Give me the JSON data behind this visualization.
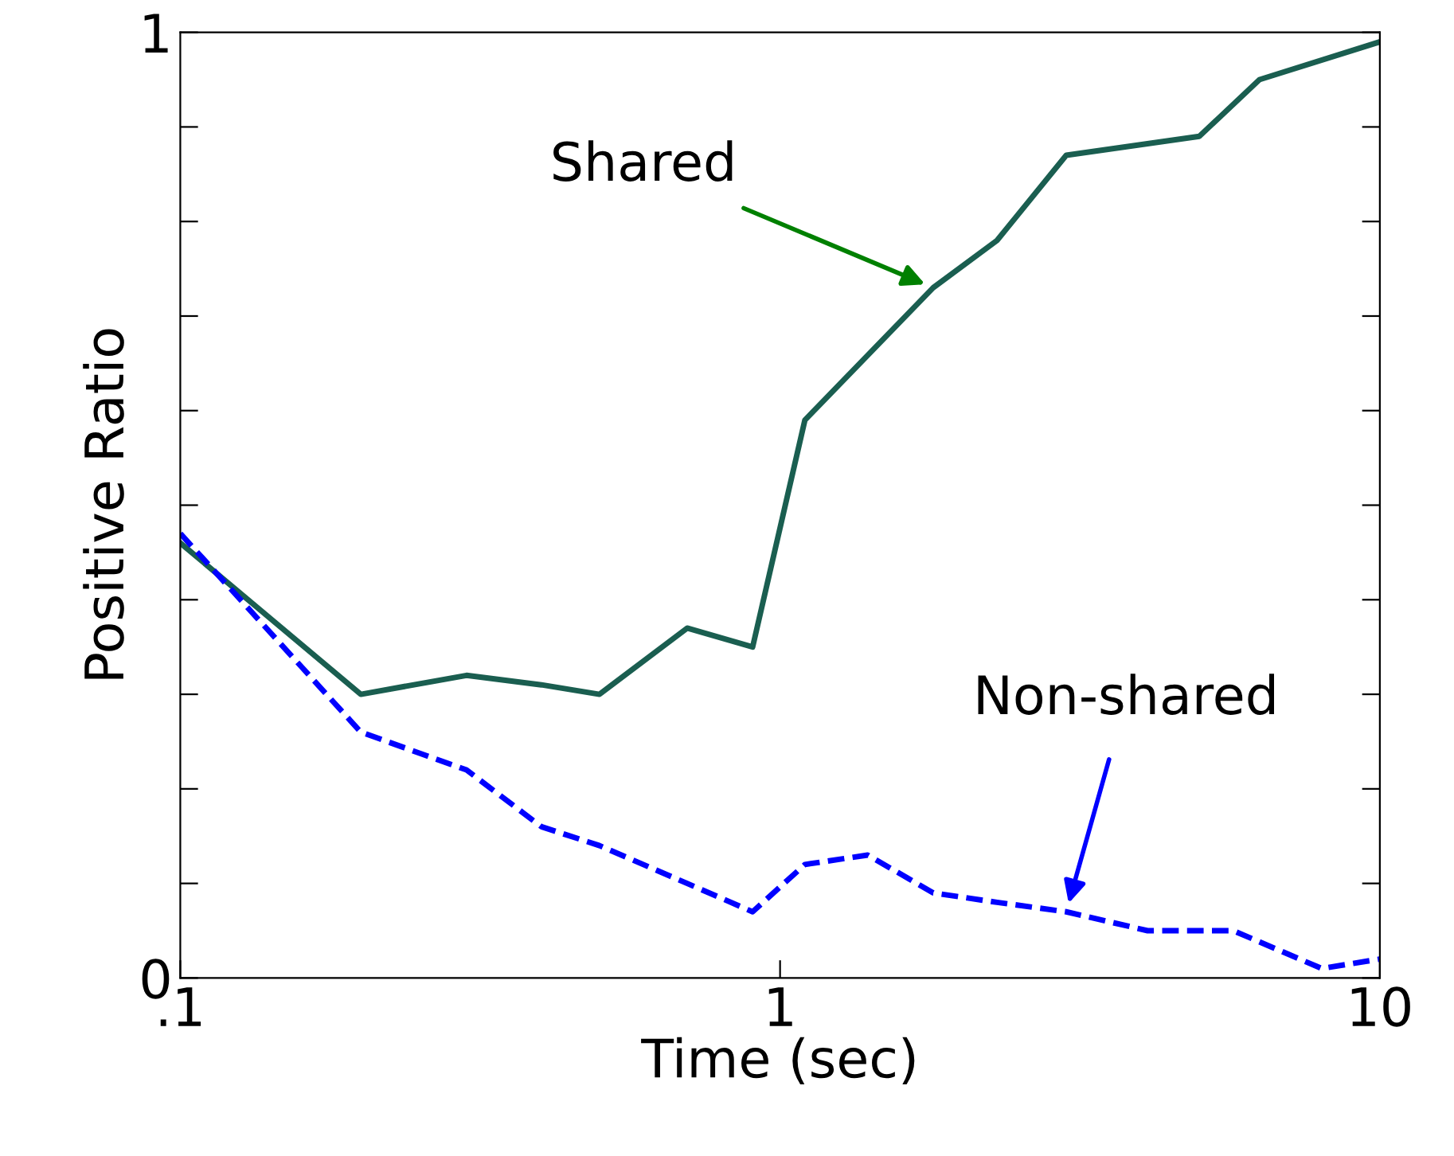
{
  "chart_data": {
    "type": "line",
    "xlabel": "Time (sec)",
    "ylabel": "Positive Ratio",
    "log": "x",
    "xlim": [
      0.1,
      10
    ],
    "xticks": [
      {
        "value": 0.1,
        "label": ".1"
      },
      1,
      10
    ],
    "ylim": [
      0,
      1
    ],
    "yticks": [
      0,
      {
        "value": 0.1,
        "label": null
      },
      {
        "value": 0.2,
        "label": null
      },
      {
        "value": 0.3,
        "label": null
      },
      {
        "value": 0.4,
        "label": null
      },
      {
        "value": 0.5,
        "label": null
      },
      {
        "value": 0.6,
        "label": null
      },
      {
        "value": 0.7,
        "label": null
      },
      {
        "value": 0.8,
        "label": null
      },
      {
        "value": 0.9,
        "label": null
      },
      1
    ],
    "grid": false,
    "legend": false,
    "marker": "none",
    "series": [
      {
        "color": "#1a5e50",
        "line_style": "solid",
        "x": [
          0.1,
          0.2,
          0.3,
          0.4,
          0.5,
          0.7,
          0.9,
          1.1,
          1.8,
          2.3,
          3.0,
          5.0,
          6.3,
          10
        ],
        "values": [
          0.46,
          0.3,
          0.32,
          0.31,
          0.3,
          0.37,
          0.35,
          0.59,
          0.73,
          0.78,
          0.87,
          0.89,
          0.95,
          0.99
        ]
      },
      {
        "color": "#0000ff",
        "line_style": "dashed",
        "x": [
          0.1,
          0.2,
          0.3,
          0.4,
          0.5,
          0.7,
          0.9,
          1.1,
          1.4,
          1.8,
          2.3,
          3.0,
          4.1,
          5.7,
          8.0,
          10
        ],
        "values": [
          0.47,
          0.26,
          0.22,
          0.16,
          0.14,
          0.1,
          0.07,
          0.12,
          0.13,
          0.09,
          0.08,
          0.07,
          0.05,
          0.05,
          0.01,
          0.02
        ]
      }
    ],
    "annotations": [
      {
        "text": "Shared",
        "x": 1.8,
        "y": 0.73
      },
      {
        "text": "Non-shared",
        "x": 3.0,
        "y": 0.07
      }
    ]
  }
}
